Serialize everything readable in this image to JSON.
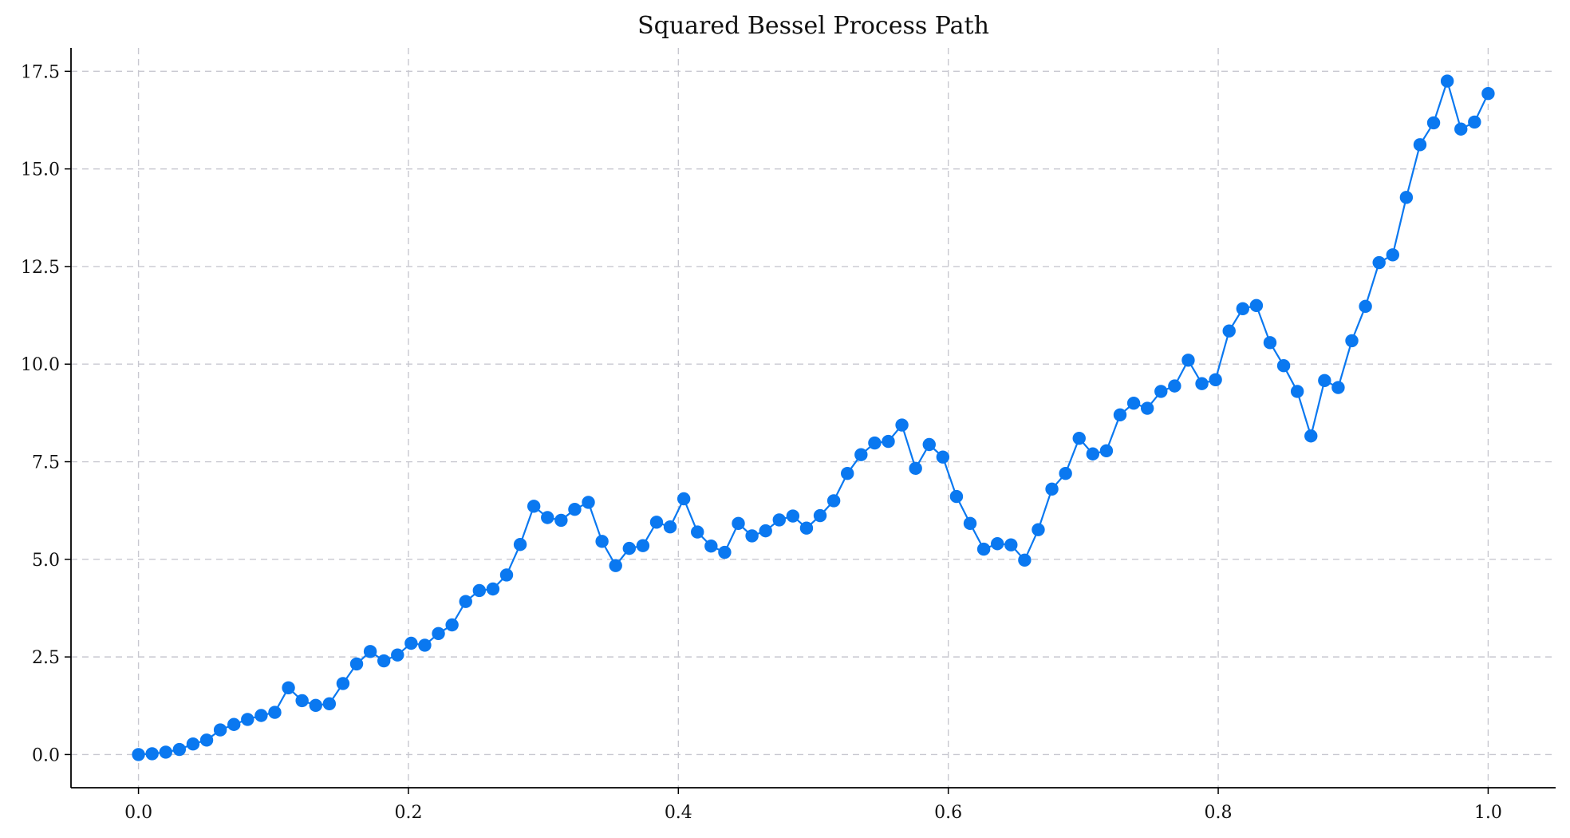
{
  "chart_data": {
    "type": "line",
    "title": "Squared Bessel Process Path",
    "xlabel": "",
    "ylabel": "",
    "xlim": [
      -0.05,
      1.05
    ],
    "ylim": [
      -0.85,
      18.1
    ],
    "grid": true,
    "markers": true,
    "series_color": "#0a78f0",
    "x_ticks": [
      0.0,
      0.2,
      0.4,
      0.6,
      0.8,
      1.0
    ],
    "x_tick_labels": [
      "0.0",
      "0.2",
      "0.4",
      "0.6",
      "0.8",
      "1.0"
    ],
    "y_ticks": [
      0.0,
      2.5,
      5.0,
      7.5,
      10.0,
      12.5,
      15.0,
      17.5
    ],
    "y_tick_labels": [
      "0.0",
      "2.5",
      "5.0",
      "7.5",
      "10.0",
      "12.5",
      "15.0",
      "17.5"
    ],
    "x_step": 0.0101010101,
    "values": [
      0.0,
      0.02,
      0.06,
      0.13,
      0.27,
      0.37,
      0.63,
      0.77,
      0.9,
      1.0,
      1.08,
      1.71,
      1.38,
      1.26,
      1.3,
      1.82,
      2.32,
      2.64,
      2.4,
      2.55,
      2.85,
      2.8,
      3.1,
      3.32,
      3.92,
      4.2,
      4.24,
      4.6,
      5.38,
      6.36,
      6.07,
      6.0,
      6.28,
      6.46,
      5.46,
      4.84,
      5.28,
      5.35,
      5.95,
      5.83,
      6.55,
      5.7,
      5.34,
      5.18,
      5.92,
      5.6,
      5.73,
      6.01,
      6.11,
      5.8,
      6.12,
      6.5,
      7.2,
      7.68,
      7.98,
      8.02,
      8.44,
      7.33,
      7.94,
      7.62,
      6.61,
      5.92,
      5.26,
      5.4,
      5.37,
      4.98,
      5.76,
      6.8,
      7.2,
      8.1,
      7.7,
      7.78,
      8.7,
      9.0,
      8.87,
      9.3,
      9.44,
      10.1,
      9.5,
      9.6,
      10.85,
      11.42,
      11.5,
      10.55,
      9.96,
      9.3,
      8.16,
      9.58,
      9.4,
      10.6,
      11.48,
      12.6,
      12.8,
      14.27,
      15.62,
      16.18,
      17.25,
      16.02,
      16.2,
      16.93
    ]
  }
}
